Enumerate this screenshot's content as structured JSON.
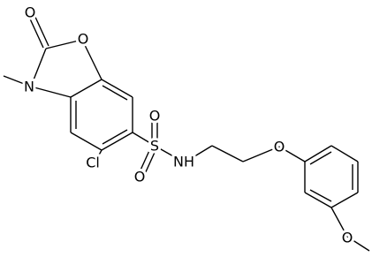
{
  "atoms": [
    {
      "label": "O"
    },
    {
      "label": "O"
    },
    {
      "label": "N"
    },
    {
      "label": "Cl"
    },
    {
      "label": "S"
    },
    {
      "label": "O"
    },
    {
      "label": "O"
    },
    {
      "label": "N"
    },
    {
      "label": "H"
    },
    {
      "label": "O"
    },
    {
      "label": "O"
    }
  ]
}
